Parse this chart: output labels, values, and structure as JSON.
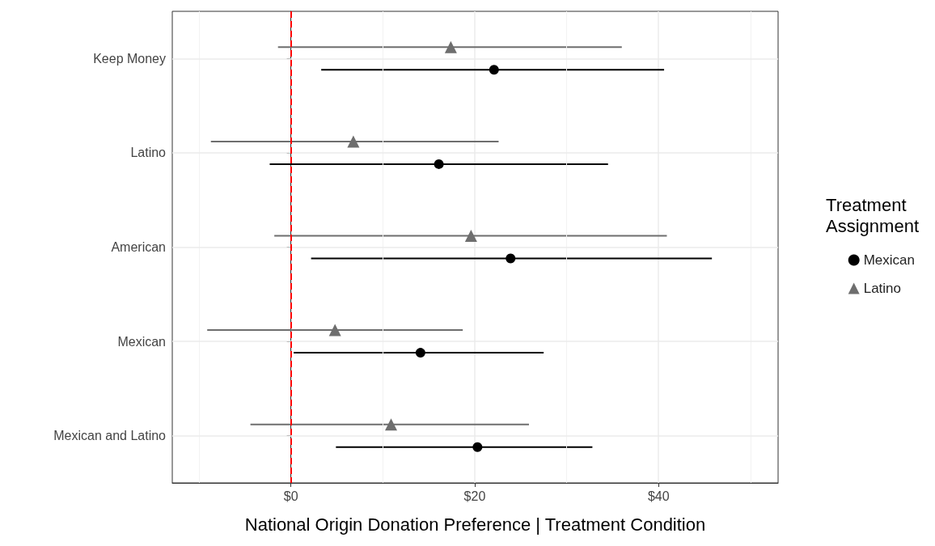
{
  "chart_data": {
    "type": "scatter",
    "orientation": "horizontal",
    "xlabel": "National Origin Donation Preference | Treatment Condition",
    "legend_title": "Treatment\nAssignment",
    "legend": "right",
    "grid": true,
    "categories": [
      "Keep Money",
      "Latino",
      "American",
      "Mexican",
      "Mexican and Latino"
    ],
    "xlim": [
      -12.9,
      53
    ],
    "xticks": [
      {
        "value": -10,
        "label": null
      },
      {
        "value": 0,
        "label": "$0"
      },
      {
        "value": 10,
        "label": null
      },
      {
        "value": 20,
        "label": "$20"
      },
      {
        "value": 30,
        "label": null
      },
      {
        "value": 40,
        "label": "$40"
      },
      {
        "value": 50,
        "label": null
      }
    ],
    "ref_lines": [
      {
        "axis": "x",
        "value": 0,
        "color": "#ff0000",
        "line_style": "dashed"
      }
    ],
    "series": [
      {
        "name": "Mexican",
        "color": "#000000",
        "marker": "circle",
        "values": [
          22.1,
          16.1,
          23.9,
          14.1,
          20.3
        ],
        "errors": [
          [
            3.3,
            40.6
          ],
          [
            -2.3,
            34.5
          ],
          [
            2.2,
            45.8
          ],
          [
            0.3,
            27.5
          ],
          [
            4.9,
            32.8
          ]
        ]
      },
      {
        "name": "Latino",
        "color": "#6e6e6e",
        "marker": "triangle",
        "values": [
          17.4,
          6.8,
          19.6,
          4.8,
          10.9
        ],
        "errors": [
          [
            -1.4,
            36.0
          ],
          [
            -8.7,
            22.6
          ],
          [
            -1.8,
            40.9
          ],
          [
            -9.1,
            18.7
          ],
          [
            -4.4,
            25.9
          ]
        ]
      }
    ]
  }
}
